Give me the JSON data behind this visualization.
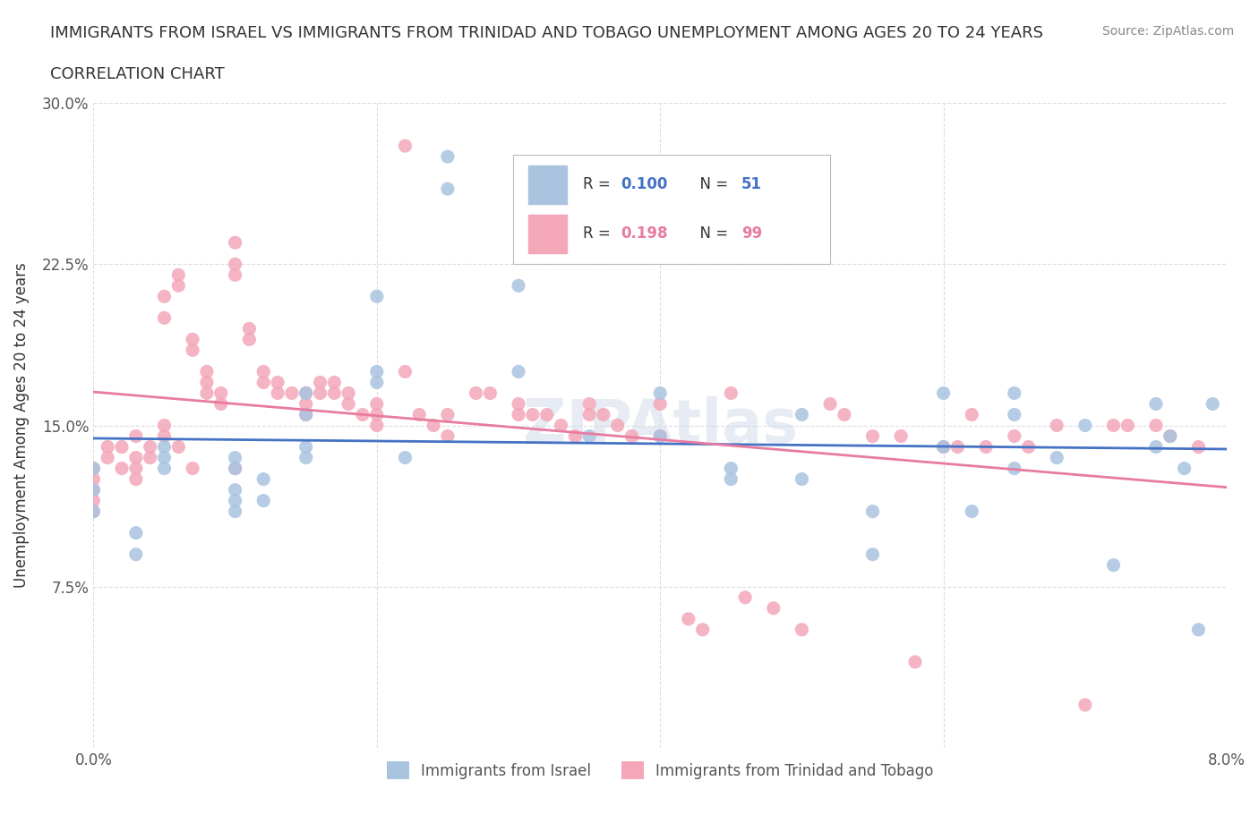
{
  "title_line1": "IMMIGRANTS FROM ISRAEL VS IMMIGRANTS FROM TRINIDAD AND TOBAGO UNEMPLOYMENT AMONG AGES 20 TO 24 YEARS",
  "title_line2": "CORRELATION CHART",
  "source_text": "Source: ZipAtlas.com",
  "xlabel": "",
  "ylabel": "Unemployment Among Ages 20 to 24 years",
  "x_min": 0.0,
  "x_max": 0.08,
  "y_min": 0.0,
  "y_max": 0.3,
  "x_ticks": [
    0.0,
    0.02,
    0.04,
    0.06,
    0.08
  ],
  "x_tick_labels": [
    "0.0%",
    "",
    "",
    "",
    "8.0%"
  ],
  "y_ticks": [
    0.0,
    0.075,
    0.15,
    0.225,
    0.3
  ],
  "y_tick_labels": [
    "",
    "7.5%",
    "15.0%",
    "22.5%",
    "30.0%"
  ],
  "israel_color": "#aac4e0",
  "tt_color": "#f4a7b9",
  "israel_line_color": "#4472c4",
  "tt_line_color": "#e87ba0",
  "R_israel": 0.1,
  "N_israel": 51,
  "R_tt": 0.198,
  "N_tt": 99,
  "watermark": "ZIPAtlas",
  "israel_x": [
    0.0,
    0.0,
    0.0,
    0.003,
    0.003,
    0.005,
    0.005,
    0.005,
    0.01,
    0.01,
    0.01,
    0.01,
    0.01,
    0.012,
    0.012,
    0.015,
    0.015,
    0.015,
    0.015,
    0.02,
    0.02,
    0.02,
    0.022,
    0.025,
    0.025,
    0.03,
    0.03,
    0.035,
    0.04,
    0.04,
    0.045,
    0.045,
    0.05,
    0.05,
    0.055,
    0.055,
    0.06,
    0.06,
    0.062,
    0.065,
    0.065,
    0.065,
    0.068,
    0.07,
    0.072,
    0.075,
    0.075,
    0.076,
    0.077,
    0.078,
    0.079
  ],
  "israel_y": [
    0.12,
    0.13,
    0.11,
    0.1,
    0.09,
    0.14,
    0.135,
    0.13,
    0.135,
    0.13,
    0.12,
    0.115,
    0.11,
    0.125,
    0.115,
    0.165,
    0.155,
    0.14,
    0.135,
    0.175,
    0.17,
    0.21,
    0.135,
    0.275,
    0.26,
    0.215,
    0.175,
    0.145,
    0.165,
    0.145,
    0.13,
    0.125,
    0.155,
    0.125,
    0.11,
    0.09,
    0.165,
    0.14,
    0.11,
    0.165,
    0.155,
    0.13,
    0.135,
    0.15,
    0.085,
    0.16,
    0.14,
    0.145,
    0.13,
    0.055,
    0.16
  ],
  "tt_x": [
    0.0,
    0.0,
    0.0,
    0.0,
    0.0,
    0.001,
    0.001,
    0.002,
    0.002,
    0.003,
    0.003,
    0.003,
    0.003,
    0.004,
    0.004,
    0.005,
    0.005,
    0.005,
    0.005,
    0.006,
    0.006,
    0.006,
    0.007,
    0.007,
    0.007,
    0.008,
    0.008,
    0.008,
    0.009,
    0.009,
    0.01,
    0.01,
    0.01,
    0.01,
    0.011,
    0.011,
    0.012,
    0.012,
    0.013,
    0.013,
    0.014,
    0.015,
    0.015,
    0.015,
    0.016,
    0.016,
    0.017,
    0.017,
    0.018,
    0.018,
    0.019,
    0.02,
    0.02,
    0.02,
    0.022,
    0.022,
    0.023,
    0.024,
    0.025,
    0.025,
    0.027,
    0.028,
    0.03,
    0.03,
    0.031,
    0.032,
    0.033,
    0.034,
    0.035,
    0.035,
    0.036,
    0.037,
    0.038,
    0.04,
    0.04,
    0.042,
    0.043,
    0.045,
    0.046,
    0.048,
    0.05,
    0.052,
    0.053,
    0.055,
    0.057,
    0.058,
    0.06,
    0.061,
    0.062,
    0.063,
    0.065,
    0.066,
    0.068,
    0.07,
    0.072,
    0.073,
    0.075,
    0.076,
    0.078
  ],
  "tt_y": [
    0.13,
    0.125,
    0.12,
    0.115,
    0.11,
    0.14,
    0.135,
    0.14,
    0.13,
    0.145,
    0.135,
    0.13,
    0.125,
    0.14,
    0.135,
    0.21,
    0.2,
    0.15,
    0.145,
    0.22,
    0.215,
    0.14,
    0.19,
    0.185,
    0.13,
    0.175,
    0.17,
    0.165,
    0.165,
    0.16,
    0.235,
    0.225,
    0.22,
    0.13,
    0.195,
    0.19,
    0.175,
    0.17,
    0.17,
    0.165,
    0.165,
    0.165,
    0.16,
    0.155,
    0.17,
    0.165,
    0.17,
    0.165,
    0.165,
    0.16,
    0.155,
    0.16,
    0.155,
    0.15,
    0.28,
    0.175,
    0.155,
    0.15,
    0.155,
    0.145,
    0.165,
    0.165,
    0.16,
    0.155,
    0.155,
    0.155,
    0.15,
    0.145,
    0.16,
    0.155,
    0.155,
    0.15,
    0.145,
    0.16,
    0.145,
    0.06,
    0.055,
    0.165,
    0.07,
    0.065,
    0.055,
    0.16,
    0.155,
    0.145,
    0.145,
    0.04,
    0.14,
    0.14,
    0.155,
    0.14,
    0.145,
    0.14,
    0.15,
    0.02,
    0.15,
    0.15,
    0.15,
    0.145,
    0.14
  ]
}
